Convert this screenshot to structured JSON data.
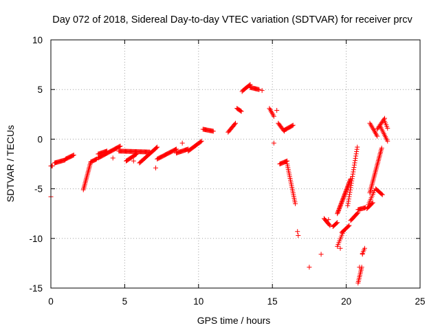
{
  "chart_data": {
    "type": "scatter",
    "title": "Day 072 of 2018, Sidereal Day-to-day VTEC variation (SDTVAR) for receiver prcv",
    "xlabel": "GPS time / hours",
    "ylabel": "SDTVAR / TECUs",
    "xlim": [
      0,
      25
    ],
    "ylim": [
      -15,
      10
    ],
    "xticks": [
      0,
      5,
      10,
      15,
      20,
      25
    ],
    "yticks": [
      -15,
      -10,
      -5,
      0,
      5,
      10
    ],
    "xtick_labels": [
      "0",
      "5",
      "10",
      "15",
      "20",
      "25"
    ],
    "ytick_labels": [
      "-15",
      "-10",
      "-5",
      "0",
      "5",
      "10"
    ],
    "grid": true,
    "marker": "+",
    "color": "#ff0000",
    "segments": [
      {
        "x0": 0.0,
        "x1": 0.1,
        "y0": -2.7,
        "y1": -2.7,
        "step": 0.05
      },
      {
        "x0": 0.25,
        "x1": 0.95,
        "y0": -2.4,
        "y1": -2.1,
        "step": 0.05
      },
      {
        "x0": 1.0,
        "x1": 1.55,
        "y0": -2.0,
        "y1": -1.6,
        "step": 0.05
      },
      {
        "x0": 2.2,
        "x1": 2.7,
        "y0": -5.1,
        "y1": -2.3,
        "step": 0.025
      },
      {
        "x0": 2.7,
        "x1": 3.1,
        "y0": -2.3,
        "y1": -2.0,
        "step": 0.05
      },
      {
        "x0": 3.2,
        "x1": 4.7,
        "y0": -1.9,
        "y1": -0.7,
        "step": 0.05
      },
      {
        "x0": 3.2,
        "x1": 3.8,
        "y0": -1.5,
        "y1": -1.2,
        "step": 0.05
      },
      {
        "x0": 4.6,
        "x1": 6.7,
        "y0": -1.2,
        "y1": -1.3,
        "step": 0.05
      },
      {
        "x0": 5.1,
        "x1": 5.8,
        "y0": -2.2,
        "y1": -1.5,
        "step": 0.05
      },
      {
        "x0": 6.0,
        "x1": 7.2,
        "y0": -2.4,
        "y1": -0.8,
        "step": 0.05
      },
      {
        "x0": 7.2,
        "x1": 8.5,
        "y0": -2.0,
        "y1": -1.0,
        "step": 0.05
      },
      {
        "x0": 8.5,
        "x1": 9.3,
        "y0": -1.4,
        "y1": -1.0,
        "step": 0.05
      },
      {
        "x0": 9.3,
        "x1": 10.2,
        "y0": -1.2,
        "y1": -0.2,
        "step": 0.05
      },
      {
        "x0": 10.3,
        "x1": 11.0,
        "y0": 1.0,
        "y1": 0.8,
        "step": 0.05
      },
      {
        "x0": 12.0,
        "x1": 12.5,
        "y0": 0.7,
        "y1": 1.6,
        "step": 0.05
      },
      {
        "x0": 12.6,
        "x1": 12.9,
        "y0": 3.1,
        "y1": 2.8,
        "step": 0.05
      },
      {
        "x0": 13.0,
        "x1": 13.5,
        "y0": 4.9,
        "y1": 5.5,
        "step": 0.05
      },
      {
        "x0": 13.5,
        "x1": 14.1,
        "y0": 5.2,
        "y1": 5.0,
        "step": 0.05
      },
      {
        "x0": 14.8,
        "x1": 15.1,
        "y0": 3.1,
        "y1": 2.3,
        "step": 0.05
      },
      {
        "x0": 15.4,
        "x1": 15.8,
        "y0": 1.6,
        "y1": 0.8,
        "step": 0.05
      },
      {
        "x0": 15.8,
        "x1": 16.4,
        "y0": 0.9,
        "y1": 1.4,
        "step": 0.05
      },
      {
        "x0": 15.5,
        "x1": 16.0,
        "y0": -2.5,
        "y1": -2.2,
        "step": 0.05
      },
      {
        "x0": 16.0,
        "x1": 16.55,
        "y0": -2.5,
        "y1": -6.5,
        "step": 0.025
      },
      {
        "x0": 18.5,
        "x1": 18.9,
        "y0": -8.0,
        "y1": -8.7,
        "step": 0.05
      },
      {
        "x0": 19.1,
        "x1": 19.4,
        "y0": -8.8,
        "y1": -8.4,
        "step": 0.05
      },
      {
        "x0": 19.4,
        "x1": 19.8,
        "y0": -10.8,
        "y1": -9.3,
        "step": 0.05
      },
      {
        "x0": 19.4,
        "x1": 20.3,
        "y0": -7.5,
        "y1": -4.0,
        "step": 0.025
      },
      {
        "x0": 19.7,
        "x1": 20.2,
        "y0": -9.4,
        "y1": -8.7,
        "step": 0.05
      },
      {
        "x0": 20.1,
        "x1": 20.75,
        "y0": -6.7,
        "y1": -0.8,
        "step": 0.025
      },
      {
        "x0": 20.3,
        "x1": 20.8,
        "y0": -8.2,
        "y1": -7.4,
        "step": 0.05
      },
      {
        "x0": 20.8,
        "x1": 21.3,
        "y0": -7.1,
        "y1": -6.9,
        "step": 0.05
      },
      {
        "x0": 20.8,
        "x1": 21.05,
        "y0": -14.5,
        "y1": -12.9,
        "step": 0.025
      },
      {
        "x0": 21.1,
        "x1": 21.25,
        "y0": -11.5,
        "y1": -11.0,
        "step": 0.05
      },
      {
        "x0": 21.4,
        "x1": 21.8,
        "y0": -7.0,
        "y1": -6.4,
        "step": 0.05
      },
      {
        "x0": 21.5,
        "x1": 21.9,
        "y0": -6.6,
        "y1": -5.2,
        "step": 0.05
      },
      {
        "x0": 21.6,
        "x1": 22.4,
        "y0": -5.4,
        "y1": -0.9,
        "step": 0.025
      },
      {
        "x0": 21.6,
        "x1": 22.1,
        "y0": 1.6,
        "y1": 0.3,
        "step": 0.05
      },
      {
        "x0": 22.1,
        "x1": 22.6,
        "y0": 1.0,
        "y1": 2.1,
        "step": 0.05
      },
      {
        "x0": 22.6,
        "x1": 22.8,
        "y0": 1.8,
        "y1": 1.1,
        "step": 0.05
      },
      {
        "x0": 22.0,
        "x1": 22.45,
        "y0": -5.0,
        "y1": -5.6,
        "step": 0.05
      },
      {
        "x0": 22.3,
        "x1": 22.8,
        "y0": 1.3,
        "y1": -0.2,
        "step": 0.05
      }
    ],
    "points": [
      {
        "x": 0.0,
        "y": -5.8
      },
      {
        "x": 4.2,
        "y": -1.9
      },
      {
        "x": 5.6,
        "y": -2.2
      },
      {
        "x": 7.1,
        "y": -2.9
      },
      {
        "x": 8.9,
        "y": -0.4
      },
      {
        "x": 12.95,
        "y": 4.8
      },
      {
        "x": 14.3,
        "y": 4.9
      },
      {
        "x": 15.1,
        "y": -0.4
      },
      {
        "x": 15.3,
        "y": 2.9
      },
      {
        "x": 16.7,
        "y": -9.3
      },
      {
        "x": 16.75,
        "y": -9.7
      },
      {
        "x": 17.5,
        "y": -12.9
      },
      {
        "x": 18.3,
        "y": -11.6
      },
      {
        "x": 18.8,
        "y": -8.1
      },
      {
        "x": 19.6,
        "y": -11.0
      },
      {
        "x": 20.9,
        "y": -12.9
      },
      {
        "x": 21.1,
        "y": -11.6
      }
    ]
  }
}
